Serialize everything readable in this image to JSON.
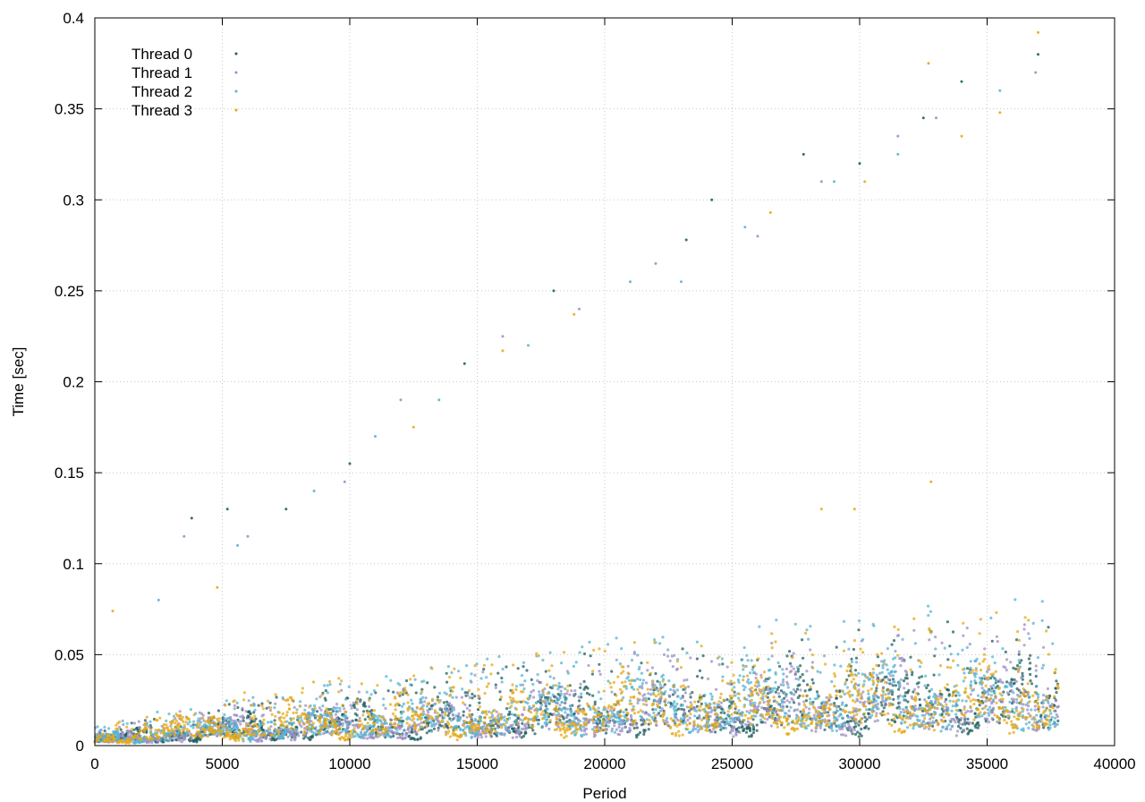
{
  "chart_data": {
    "type": "scatter",
    "title": "",
    "xlabel": "Period",
    "ylabel": "Time [sec]",
    "xlim": [
      0,
      40000
    ],
    "ylim": [
      0,
      0.4
    ],
    "xticks": [
      0,
      5000,
      10000,
      15000,
      20000,
      25000,
      30000,
      35000,
      40000
    ],
    "xtick_labels": [
      "0",
      "5000",
      "10000",
      "15000",
      "20000",
      "25000",
      "30000",
      "35000",
      "40000"
    ],
    "yticks": [
      0,
      0.05,
      0.1,
      0.15,
      0.2,
      0.25,
      0.3,
      0.35,
      0.4
    ],
    "ytick_labels": [
      "0",
      "0.05",
      "0.1",
      "0.15",
      "0.2",
      "0.25",
      "0.3",
      "0.35",
      "0.4"
    ],
    "grid": true,
    "grid_style": "dotted",
    "legend_position": "top-left",
    "marker": "small dot",
    "series": [
      {
        "name": "Thread 0",
        "color": "#1f5f5f",
        "approx_x_range": [
          0,
          37800
        ],
        "approx_baseline_points": [
          [
            0,
            0.003
          ],
          [
            5000,
            0.009
          ],
          [
            10000,
            0.012
          ],
          [
            15000,
            0.016
          ],
          [
            20000,
            0.02
          ],
          [
            25000,
            0.022
          ],
          [
            30000,
            0.024
          ],
          [
            35000,
            0.026
          ],
          [
            37800,
            0.026
          ]
        ],
        "outliers": [
          [
            3800,
            0.125
          ],
          [
            5200,
            0.13
          ],
          [
            7500,
            0.13
          ],
          [
            10000,
            0.155
          ],
          [
            14500,
            0.21
          ],
          [
            18000,
            0.25
          ],
          [
            23200,
            0.278
          ],
          [
            24200,
            0.3
          ],
          [
            27800,
            0.325
          ],
          [
            30000,
            0.32
          ],
          [
            32500,
            0.345
          ],
          [
            34000,
            0.365
          ],
          [
            37000,
            0.38
          ]
        ]
      },
      {
        "name": "Thread 1",
        "color": "#9c8fc4",
        "approx_x_range": [
          0,
          37800
        ],
        "approx_baseline_points": [
          [
            0,
            0.003
          ],
          [
            5000,
            0.009
          ],
          [
            10000,
            0.012
          ],
          [
            15000,
            0.015
          ],
          [
            20000,
            0.019
          ],
          [
            25000,
            0.021
          ],
          [
            30000,
            0.023
          ],
          [
            35000,
            0.025
          ],
          [
            37800,
            0.025
          ]
        ],
        "outliers": [
          [
            3500,
            0.115
          ],
          [
            6000,
            0.115
          ],
          [
            9800,
            0.145
          ],
          [
            12000,
            0.19
          ],
          [
            16000,
            0.225
          ],
          [
            19000,
            0.24
          ],
          [
            22000,
            0.265
          ],
          [
            26000,
            0.28
          ],
          [
            28500,
            0.31
          ],
          [
            31500,
            0.335
          ],
          [
            33000,
            0.345
          ],
          [
            36900,
            0.37
          ]
        ]
      },
      {
        "name": "Thread 2",
        "color": "#56b4d3",
        "approx_x_range": [
          0,
          37800
        ],
        "approx_baseline_points": [
          [
            0,
            0.004
          ],
          [
            5000,
            0.01
          ],
          [
            10000,
            0.013
          ],
          [
            15000,
            0.018
          ],
          [
            20000,
            0.022
          ],
          [
            25000,
            0.025
          ],
          [
            30000,
            0.027
          ],
          [
            35000,
            0.03
          ],
          [
            37800,
            0.03
          ]
        ],
        "outliers": [
          [
            2500,
            0.08
          ],
          [
            5600,
            0.11
          ],
          [
            8600,
            0.14
          ],
          [
            11000,
            0.17
          ],
          [
            13500,
            0.19
          ],
          [
            17000,
            0.22
          ],
          [
            21000,
            0.255
          ],
          [
            23000,
            0.255
          ],
          [
            25500,
            0.285
          ],
          [
            29000,
            0.31
          ],
          [
            31500,
            0.325
          ],
          [
            35500,
            0.36
          ]
        ]
      },
      {
        "name": "Thread 3",
        "color": "#e6a817",
        "approx_x_range": [
          0,
          37800
        ],
        "approx_baseline_points": [
          [
            0,
            0.004
          ],
          [
            5000,
            0.011
          ],
          [
            10000,
            0.014
          ],
          [
            15000,
            0.017
          ],
          [
            20000,
            0.021
          ],
          [
            25000,
            0.023
          ],
          [
            30000,
            0.025
          ],
          [
            35000,
            0.028
          ],
          [
            37800,
            0.028
          ]
        ],
        "outliers": [
          [
            700,
            0.074
          ],
          [
            4800,
            0.087
          ],
          [
            12500,
            0.175
          ],
          [
            16000,
            0.217
          ],
          [
            18800,
            0.237
          ],
          [
            26500,
            0.293
          ],
          [
            28500,
            0.13
          ],
          [
            29800,
            0.13
          ],
          [
            30200,
            0.31
          ],
          [
            32700,
            0.375
          ],
          [
            32800,
            0.145
          ],
          [
            34000,
            0.335
          ],
          [
            35500,
            0.348
          ],
          [
            37000,
            0.392
          ]
        ]
      }
    ]
  }
}
